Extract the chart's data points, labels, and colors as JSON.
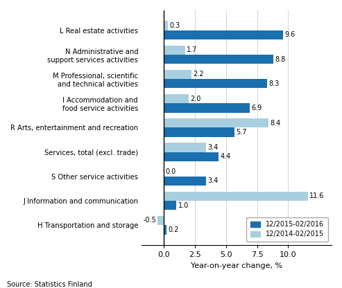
{
  "categories": [
    "L Real estate activities",
    "N Administrative and\nsupport services activities",
    "M Professional, scientific\nand technical activities",
    "I Accommodation and\nfood service activities",
    "R Arts, entertainment and recreation",
    "Services, total (excl. trade)",
    "S Other service activities",
    "J Information and communication",
    "H Transportation and storage"
  ],
  "series1_values": [
    9.6,
    8.8,
    8.3,
    6.9,
    5.7,
    4.4,
    3.4,
    1.0,
    0.2
  ],
  "series2_values": [
    0.3,
    1.7,
    2.2,
    2.0,
    8.4,
    3.4,
    0.0,
    11.6,
    -0.5
  ],
  "color1": "#1a6faf",
  "color2": "#a8cfe0",
  "legend1": "12/2015-02/2016",
  "legend2": "12/2014-02/2015",
  "xlabel": "Year-on-year change, %",
  "source": "Source: Statistics Finland",
  "xlim": [
    -1.8,
    13.5
  ],
  "xticks": [
    0.0,
    2.5,
    5.0,
    7.5,
    10.0
  ],
  "xtick_labels": [
    "0.0",
    "2.5",
    "5.0",
    "7.5",
    "10.0"
  ],
  "bar_height": 0.38,
  "figsize": [
    4.93,
    4.16
  ],
  "dpi": 100
}
